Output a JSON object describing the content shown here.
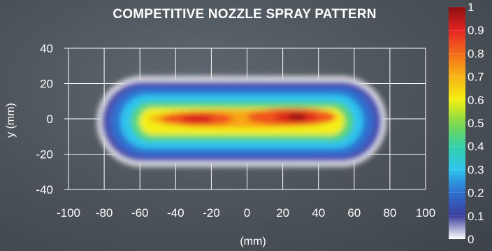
{
  "chart_data": {
    "type": "heatmap",
    "title": "COMPETITIVE NOZZLE SPRAY PATTERN",
    "xlabel": "(mm)",
    "ylabel": "y (mm)",
    "xlim": [
      -100,
      100
    ],
    "ylim": [
      -40,
      40
    ],
    "x_ticks": [
      "-100",
      "-80",
      "-60",
      "-40",
      "-20",
      "0",
      "20",
      "40",
      "60",
      "80",
      "100"
    ],
    "y_ticks": [
      "40",
      "20",
      "0",
      "-20",
      "-40"
    ],
    "grid": true,
    "colorbar": {
      "min": 0,
      "max": 1,
      "ticks": [
        "1",
        "0.9",
        "0.8",
        "0.7",
        "0.6",
        "0.5",
        "0.4",
        "0.3",
        "0.2",
        "0.1",
        "0"
      ],
      "colors": [
        "#ffffff",
        "#3b3f9c",
        "#2f6fd0",
        "#2ec4ee",
        "#35d0a8",
        "#7fd84a",
        "#f3ef12",
        "#f7b515",
        "#f26b1a",
        "#e42522",
        "#8a0f10"
      ]
    },
    "spray_pattern": {
      "x_extent": [
        -84,
        78
      ],
      "y_extent": [
        -27,
        24
      ],
      "peaks": [
        {
          "x": 28,
          "y": 1,
          "intensity": 1.0
        },
        {
          "x": -28,
          "y": 0,
          "intensity": 0.85
        },
        {
          "x": 0,
          "y": 0,
          "intensity": 0.7
        }
      ]
    }
  }
}
